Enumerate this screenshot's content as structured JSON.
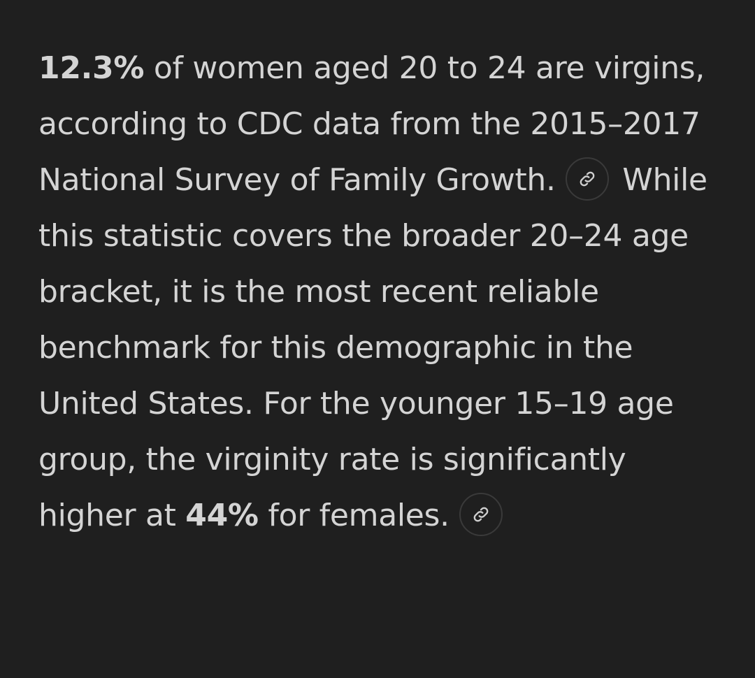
{
  "paragraph": {
    "segments": [
      {
        "text": "12.3%",
        "bold": true
      },
      {
        "text": " of women aged 20 to 24 are virgins, according to CDC data from the 2015–2017 National Survey of Family Growth."
      },
      {
        "text": " While this statistic covers the broader 20–24 age bracket, it is the most recent reliable benchmark for this demographic in the United States. For the younger 15–19 age group, the virginity rate is significantly higher at "
      },
      {
        "text": "44%",
        "bold": true
      },
      {
        "text": " for females."
      }
    ]
  }
}
